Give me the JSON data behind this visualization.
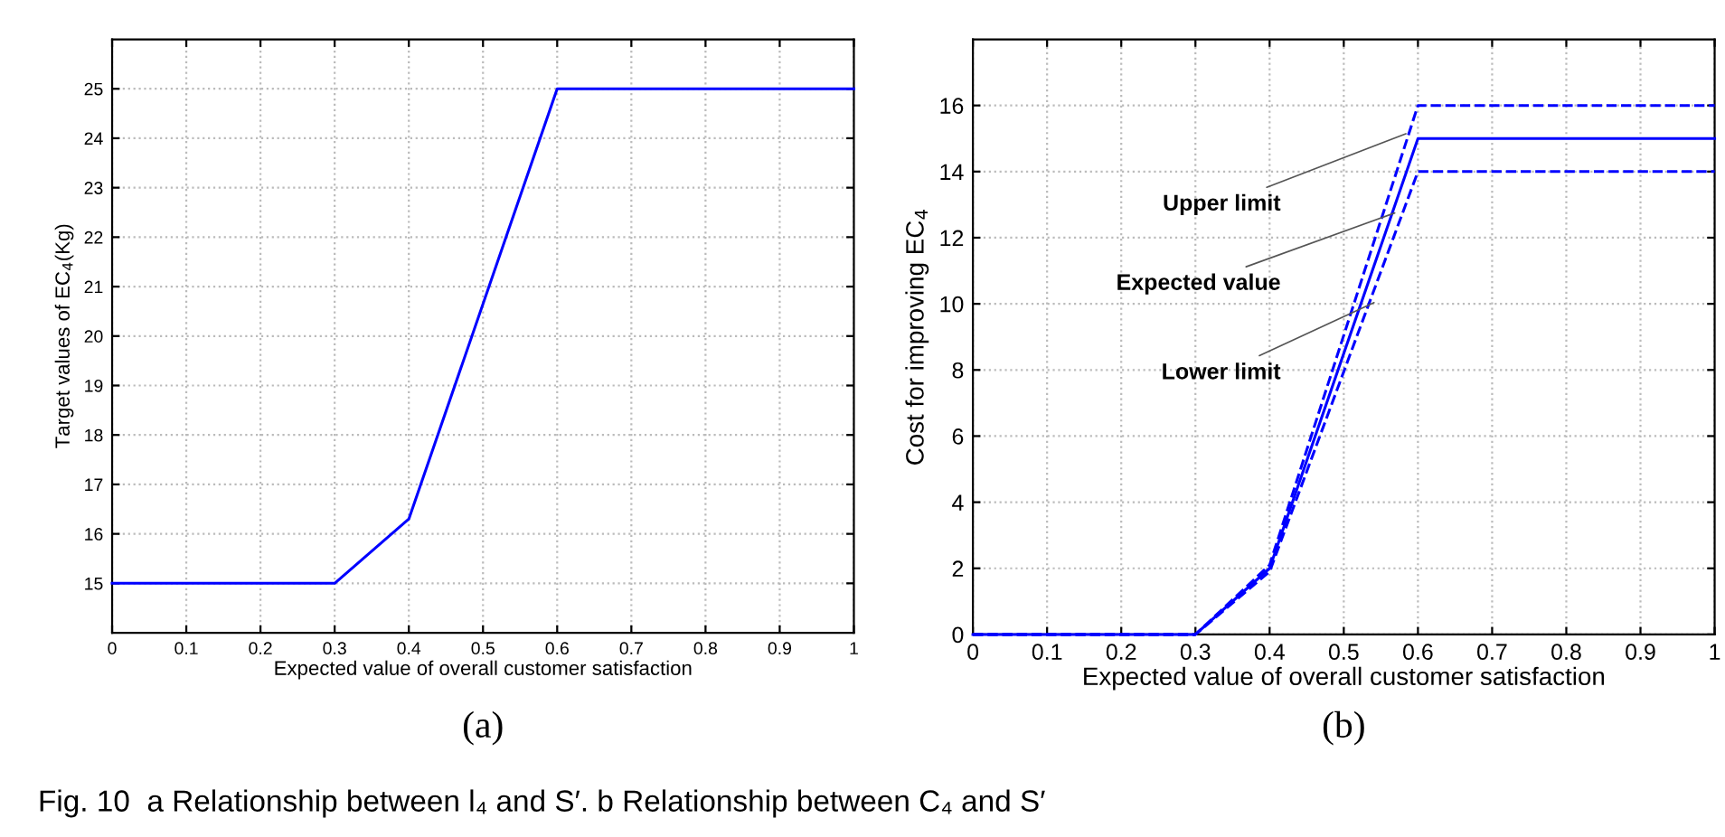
{
  "chart_data": [
    {
      "type": "line",
      "xlabel": "Expected value of overall customer satisfaction",
      "ylabel": "Target values of EC$_{4}$(Kg)",
      "xlim": [
        0,
        1
      ],
      "ylim": [
        14,
        26
      ],
      "xticks": [
        0,
        0.1,
        0.2,
        0.3,
        0.4,
        0.5,
        0.6,
        0.7,
        0.8,
        0.9,
        1
      ],
      "yticks": [
        15,
        16,
        17,
        18,
        19,
        20,
        21,
        22,
        23,
        24,
        25
      ],
      "grid": true,
      "marker": "none",
      "line_style": "solid",
      "x": [
        0,
        0.3,
        0.4,
        0.6,
        1
      ],
      "series": [
        {
          "color": "#0000ff",
          "values": [
            15,
            15,
            16.3,
            25,
            25
          ]
        }
      ],
      "annotations": [
        "(a)",
        "Fig. 10  a Relationship between l₄ and S′. b Relationship between C₄ and S′"
      ]
    },
    {
      "type": "line",
      "xlabel": "Expected value of overall customer satisfaction",
      "ylabel": "Cost for improving EC$_{4}$",
      "xlim": [
        0,
        1
      ],
      "ylim": [
        0,
        18
      ],
      "xticks": [
        0,
        0.1,
        0.2,
        0.3,
        0.4,
        0.5,
        0.6,
        0.7,
        0.8,
        0.9,
        1
      ],
      "yticks": [
        0,
        2,
        4,
        6,
        8,
        10,
        12,
        14,
        16
      ],
      "grid": true,
      "marker": "none",
      "x": [
        0,
        0.3,
        0.4,
        0.6,
        1
      ],
      "series": [
        {
          "color": "#0000ff",
          "line_style": "dashed",
          "values": [
            0,
            0,
            2.1,
            16,
            16
          ]
        },
        {
          "color": "#0000ff",
          "line_style": "solid",
          "values": [
            0,
            0,
            2,
            15,
            15
          ]
        },
        {
          "color": "#0000ff",
          "line_style": "dashed",
          "values": [
            0,
            0,
            1.9,
            14,
            14
          ]
        }
      ],
      "annotations": [
        {
          "text": "Upper limit",
          "x": 0.59,
          "y": 15.2
        },
        {
          "text": "Expected value",
          "x": 0.575,
          "y": 12.8
        },
        {
          "text": "Lower limit",
          "x": 0.547,
          "y": 10.1
        },
        "(b)"
      ]
    }
  ]
}
